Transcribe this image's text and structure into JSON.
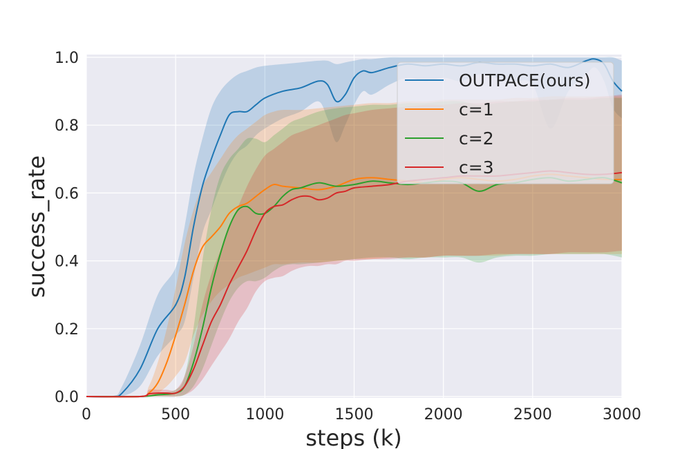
{
  "chart_data": {
    "type": "line",
    "title": "",
    "xlabel": "steps (k)",
    "ylabel": "success_rate",
    "xlim": [
      0,
      3000
    ],
    "ylim": [
      0,
      1.0
    ],
    "xticks": [
      0,
      500,
      1000,
      1500,
      2000,
      2500,
      3000
    ],
    "xtick_labels": [
      "0",
      "500",
      "1000",
      "1500",
      "2000",
      "2500",
      "3000"
    ],
    "yticks": [
      0,
      0.2,
      0.4,
      0.6,
      0.8,
      1.0
    ],
    "ytick_labels": [
      "0.0",
      "0.2",
      "0.4",
      "0.6",
      "0.8",
      "1.0"
    ],
    "grid": true,
    "legend_position": "top-right",
    "series": [
      {
        "name": "OUTPACE(ours)",
        "color": "#1f77b4",
        "x": [
          0,
          150,
          200,
          300,
          400,
          500,
          550,
          600,
          650,
          700,
          750,
          800,
          850,
          900,
          950,
          1000,
          1100,
          1200,
          1300,
          1350,
          1400,
          1450,
          1500,
          1550,
          1600,
          1700,
          1800,
          1900,
          2000,
          2100,
          2200,
          2300,
          2400,
          2500,
          2600,
          2700,
          2800,
          2850,
          2900,
          2950,
          3000
        ],
        "mean": [
          0,
          0,
          0.01,
          0.08,
          0.2,
          0.27,
          0.35,
          0.5,
          0.62,
          0.7,
          0.77,
          0.83,
          0.84,
          0.84,
          0.86,
          0.88,
          0.9,
          0.91,
          0.93,
          0.92,
          0.87,
          0.89,
          0.94,
          0.96,
          0.955,
          0.97,
          0.98,
          0.975,
          0.98,
          0.975,
          0.985,
          0.98,
          0.98,
          0.975,
          0.98,
          0.97,
          0.99,
          0.995,
          0.98,
          0.93,
          0.9
        ],
        "upper": [
          0,
          0,
          0.03,
          0.15,
          0.3,
          0.38,
          0.5,
          0.65,
          0.76,
          0.85,
          0.9,
          0.93,
          0.95,
          0.96,
          0.97,
          0.975,
          0.98,
          0.985,
          0.99,
          0.99,
          0.98,
          0.985,
          0.99,
          0.995,
          0.995,
          1.0,
          1.0,
          1.0,
          1.0,
          1.0,
          1.0,
          1.0,
          1.0,
          1.0,
          1.0,
          1.0,
          1.0,
          1.0,
          1.0,
          1.0,
          0.99
        ],
        "lower": [
          0,
          0,
          0,
          0.03,
          0.12,
          0.18,
          0.22,
          0.35,
          0.48,
          0.55,
          0.62,
          0.68,
          0.72,
          0.74,
          0.77,
          0.79,
          0.82,
          0.84,
          0.87,
          0.82,
          0.75,
          0.8,
          0.86,
          0.9,
          0.89,
          0.92,
          0.94,
          0.93,
          0.94,
          0.93,
          0.95,
          0.94,
          0.93,
          0.92,
          0.79,
          0.9,
          0.95,
          0.97,
          0.93,
          0.85,
          0.82
        ]
      },
      {
        "name": "c=1",
        "color": "#ff7f0e",
        "x": [
          0,
          300,
          350,
          400,
          450,
          500,
          550,
          600,
          650,
          700,
          750,
          800,
          850,
          900,
          950,
          1000,
          1050,
          1100,
          1200,
          1300,
          1400,
          1500,
          1600,
          1700,
          1800,
          1900,
          2000,
          2100,
          2200,
          2300,
          2400,
          2500,
          2600,
          2700,
          2800,
          2900,
          3000
        ],
        "mean": [
          0,
          0,
          0.01,
          0.04,
          0.1,
          0.18,
          0.27,
          0.37,
          0.44,
          0.47,
          0.5,
          0.54,
          0.56,
          0.57,
          0.59,
          0.61,
          0.625,
          0.62,
          0.615,
          0.61,
          0.62,
          0.64,
          0.645,
          0.64,
          0.635,
          0.63,
          0.64,
          0.645,
          0.64,
          0.635,
          0.64,
          0.65,
          0.655,
          0.65,
          0.645,
          0.64,
          0.64
        ],
        "upper": [
          0,
          0,
          0.03,
          0.1,
          0.2,
          0.32,
          0.45,
          0.55,
          0.62,
          0.66,
          0.7,
          0.74,
          0.77,
          0.79,
          0.81,
          0.83,
          0.84,
          0.845,
          0.845,
          0.85,
          0.855,
          0.86,
          0.865,
          0.865,
          0.87,
          0.87,
          0.875,
          0.875,
          0.875,
          0.875,
          0.88,
          0.88,
          0.885,
          0.885,
          0.885,
          0.885,
          0.885
        ],
        "lower": [
          0,
          0,
          0,
          0.01,
          0.03,
          0.06,
          0.1,
          0.18,
          0.24,
          0.28,
          0.31,
          0.33,
          0.35,
          0.36,
          0.37,
          0.38,
          0.39,
          0.39,
          0.395,
          0.395,
          0.4,
          0.405,
          0.405,
          0.41,
          0.41,
          0.41,
          0.415,
          0.415,
          0.415,
          0.415,
          0.42,
          0.42,
          0.42,
          0.42,
          0.42,
          0.42,
          0.42
        ]
      },
      {
        "name": "c=2",
        "color": "#2ca02c",
        "x": [
          0,
          300,
          400,
          500,
          550,
          600,
          650,
          700,
          750,
          800,
          850,
          900,
          950,
          1000,
          1050,
          1100,
          1150,
          1200,
          1300,
          1400,
          1500,
          1600,
          1700,
          1800,
          1900,
          2000,
          2100,
          2200,
          2300,
          2400,
          2500,
          2600,
          2700,
          2800,
          2900,
          3000
        ],
        "mean": [
          0,
          0,
          0.005,
          0.01,
          0.03,
          0.1,
          0.2,
          0.32,
          0.42,
          0.5,
          0.55,
          0.56,
          0.54,
          0.54,
          0.56,
          0.59,
          0.61,
          0.615,
          0.63,
          0.62,
          0.625,
          0.635,
          0.63,
          0.625,
          0.63,
          0.635,
          0.63,
          0.605,
          0.625,
          0.63,
          0.64,
          0.645,
          0.635,
          0.64,
          0.645,
          0.63
        ],
        "upper": [
          0,
          0,
          0.01,
          0.02,
          0.06,
          0.2,
          0.4,
          0.55,
          0.65,
          0.7,
          0.73,
          0.76,
          0.76,
          0.75,
          0.77,
          0.79,
          0.81,
          0.82,
          0.84,
          0.85,
          0.855,
          0.86,
          0.86,
          0.865,
          0.865,
          0.87,
          0.87,
          0.86,
          0.865,
          0.87,
          0.87,
          0.875,
          0.875,
          0.875,
          0.88,
          0.88
        ],
        "lower": [
          0,
          0,
          0,
          0,
          0.005,
          0.03,
          0.08,
          0.15,
          0.22,
          0.28,
          0.32,
          0.34,
          0.34,
          0.35,
          0.37,
          0.385,
          0.39,
          0.39,
          0.395,
          0.4,
          0.405,
          0.41,
          0.41,
          0.405,
          0.41,
          0.41,
          0.41,
          0.395,
          0.41,
          0.415,
          0.415,
          0.42,
          0.42,
          0.42,
          0.42,
          0.41
        ]
      },
      {
        "name": "c=3",
        "color": "#d62728",
        "x": [
          0,
          300,
          350,
          400,
          450,
          500,
          550,
          600,
          650,
          700,
          750,
          800,
          850,
          900,
          950,
          1000,
          1050,
          1100,
          1150,
          1200,
          1250,
          1300,
          1350,
          1400,
          1450,
          1500,
          1600,
          1700,
          1800,
          1900,
          2000,
          2100,
          2200,
          2300,
          2400,
          2500,
          2600,
          2700,
          2800,
          2900,
          3000
        ],
        "mean": [
          0,
          0,
          0.008,
          0.01,
          0.01,
          0.01,
          0.03,
          0.08,
          0.15,
          0.22,
          0.27,
          0.33,
          0.38,
          0.43,
          0.49,
          0.54,
          0.56,
          0.565,
          0.58,
          0.59,
          0.59,
          0.58,
          0.585,
          0.6,
          0.605,
          0.615,
          0.62,
          0.625,
          0.635,
          0.64,
          0.645,
          0.65,
          0.65,
          0.65,
          0.655,
          0.66,
          0.665,
          0.66,
          0.655,
          0.655,
          0.66
        ],
        "upper": [
          0,
          0,
          0.02,
          0.02,
          0.02,
          0.02,
          0.06,
          0.15,
          0.27,
          0.36,
          0.43,
          0.5,
          0.56,
          0.62,
          0.67,
          0.71,
          0.73,
          0.75,
          0.77,
          0.78,
          0.79,
          0.8,
          0.81,
          0.82,
          0.83,
          0.835,
          0.845,
          0.85,
          0.855,
          0.86,
          0.86,
          0.865,
          0.865,
          0.87,
          0.87,
          0.875,
          0.875,
          0.88,
          0.88,
          0.885,
          0.89
        ],
        "lower": [
          0,
          0,
          0,
          0,
          0,
          0,
          0.005,
          0.02,
          0.05,
          0.09,
          0.13,
          0.17,
          0.22,
          0.26,
          0.31,
          0.34,
          0.35,
          0.355,
          0.37,
          0.38,
          0.385,
          0.385,
          0.39,
          0.39,
          0.4,
          0.4,
          0.405,
          0.405,
          0.41,
          0.41,
          0.415,
          0.415,
          0.415,
          0.42,
          0.42,
          0.42,
          0.42,
          0.425,
          0.425,
          0.425,
          0.43
        ]
      }
    ]
  }
}
